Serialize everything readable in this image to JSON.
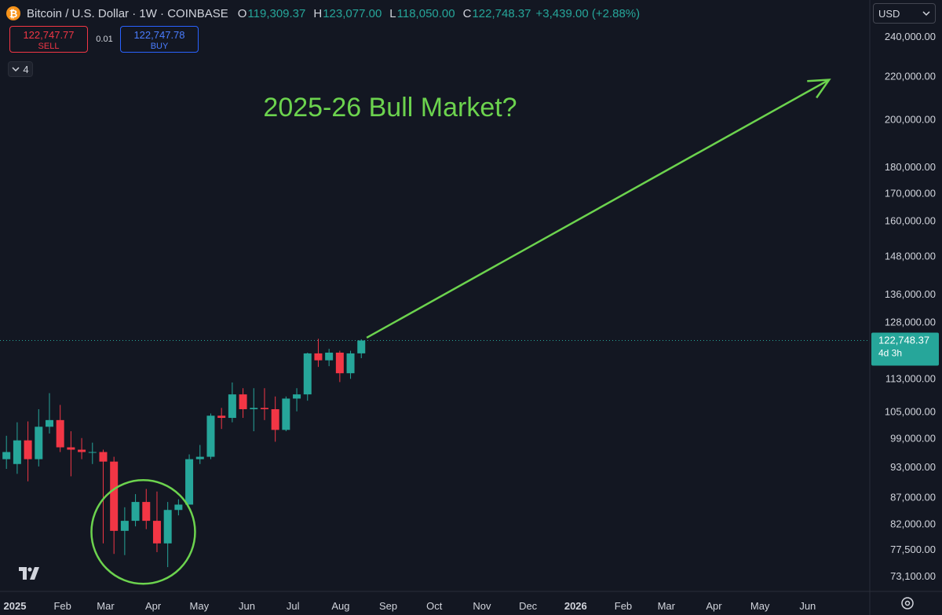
{
  "header": {
    "symbol": "Bitcoin / U.S. Dollar · 1W · COINBASE",
    "open_label": "O",
    "open": "119,309.37",
    "high_label": "H",
    "high": "123,077.00",
    "low_label": "L",
    "low": "118,050.00",
    "close_label": "C",
    "close": "122,748.37",
    "change": "+3,439.00 (+2.88%)"
  },
  "trade": {
    "sell_price": "122,747.77",
    "sell_label": "SELL",
    "spread": "0.01",
    "buy_price": "122,747.78",
    "buy_label": "BUY"
  },
  "indicators_count": "4",
  "currency": "USD",
  "price_tag": {
    "price": "122,748.37",
    "countdown": "4d 3h"
  },
  "colors": {
    "up": "#26a69a",
    "down": "#f23645",
    "annotation": "#6cd34e",
    "background": "#131722"
  },
  "chart_data": {
    "type": "candlestick",
    "title": "2025-26 Bull Market?",
    "scale": "log",
    "y_ticks": [
      73100,
      77500,
      82000,
      87000,
      93000,
      99000,
      105000,
      113000,
      128000,
      136000,
      148000,
      160000,
      170000,
      180000,
      200000,
      220000,
      240000
    ],
    "y_tick_labels": [
      "73,100.00",
      "77,500.00",
      "82,000.00",
      "87,000.00",
      "93,000.00",
      "99,000.00",
      "105,000.00",
      "113,000.00",
      "128,000.00",
      "136,000.00",
      "148,000.00",
      "160,000.00",
      "170,000.00",
      "180,000.00",
      "200,000.00",
      "220,000.00",
      "240,000.00"
    ],
    "x_ticks": [
      {
        "label": "2025",
        "date": "2025-01-01",
        "bold": true
      },
      {
        "label": "Feb",
        "date": "2025-02-01"
      },
      {
        "label": "Mar",
        "date": "2025-03-01"
      },
      {
        "label": "Apr",
        "date": "2025-04-01"
      },
      {
        "label": "May",
        "date": "2025-05-01"
      },
      {
        "label": "Jun",
        "date": "2025-06-01"
      },
      {
        "label": "Jul",
        "date": "2025-07-01"
      },
      {
        "label": "Aug",
        "date": "2025-08-01"
      },
      {
        "label": "Sep",
        "date": "2025-09-01"
      },
      {
        "label": "Oct",
        "date": "2025-10-01"
      },
      {
        "label": "Nov",
        "date": "2025-11-01"
      },
      {
        "label": "Dec",
        "date": "2025-12-01"
      },
      {
        "label": "2026",
        "date": "2026-01-01",
        "bold": true
      },
      {
        "label": "Feb",
        "date": "2026-02-01"
      },
      {
        "label": "Mar",
        "date": "2026-03-01"
      },
      {
        "label": "Apr",
        "date": "2026-04-01"
      },
      {
        "label": "May",
        "date": "2026-05-01"
      },
      {
        "label": "Jun",
        "date": "2026-06-01"
      }
    ],
    "candles": [
      {
        "date": "2024-12-23",
        "o": 94500,
        "h": 99500,
        "l": 92500,
        "c": 96000
      },
      {
        "date": "2024-12-30",
        "o": 93500,
        "h": 102500,
        "l": 91500,
        "c": 98500
      },
      {
        "date": "2025-01-06",
        "o": 98500,
        "h": 102700,
        "l": 90000,
        "c": 94500
      },
      {
        "date": "2025-01-13",
        "o": 94500,
        "h": 105500,
        "l": 93000,
        "c": 101500
      },
      {
        "date": "2025-01-20",
        "o": 101500,
        "h": 109300,
        "l": 100000,
        "c": 103000
      },
      {
        "date": "2025-01-27",
        "o": 103000,
        "h": 106500,
        "l": 96000,
        "c": 97000
      },
      {
        "date": "2025-02-03",
        "o": 97000,
        "h": 100500,
        "l": 91000,
        "c": 96500
      },
      {
        "date": "2025-02-10",
        "o": 96500,
        "h": 99000,
        "l": 94500,
        "c": 96000
      },
      {
        "date": "2025-02-17",
        "o": 96000,
        "h": 98000,
        "l": 93500,
        "c": 96000
      },
      {
        "date": "2025-02-24",
        "o": 96000,
        "h": 96500,
        "l": 78500,
        "c": 94000
      },
      {
        "date": "2025-03-03",
        "o": 94000,
        "h": 95000,
        "l": 76700,
        "c": 80700
      },
      {
        "date": "2025-03-10",
        "o": 80700,
        "h": 85000,
        "l": 76500,
        "c": 82500
      },
      {
        "date": "2025-03-17",
        "o": 82500,
        "h": 87500,
        "l": 81500,
        "c": 86000
      },
      {
        "date": "2025-03-24",
        "o": 86000,
        "h": 88500,
        "l": 81000,
        "c": 82500
      },
      {
        "date": "2025-03-31",
        "o": 82500,
        "h": 88000,
        "l": 77000,
        "c": 78500
      },
      {
        "date": "2025-04-07",
        "o": 78500,
        "h": 86000,
        "l": 74500,
        "c": 84500
      },
      {
        "date": "2025-04-14",
        "o": 84500,
        "h": 86500,
        "l": 83500,
        "c": 85500
      },
      {
        "date": "2025-04-21",
        "o": 85500,
        "h": 95500,
        "l": 85500,
        "c": 94500
      },
      {
        "date": "2025-04-28",
        "o": 94500,
        "h": 97500,
        "l": 93500,
        "c": 95000
      },
      {
        "date": "2025-05-05",
        "o": 95000,
        "h": 104500,
        "l": 94500,
        "c": 104000
      },
      {
        "date": "2025-05-12",
        "o": 104000,
        "h": 105800,
        "l": 101000,
        "c": 103500
      },
      {
        "date": "2025-05-19",
        "o": 103500,
        "h": 111900,
        "l": 102500,
        "c": 109000
      },
      {
        "date": "2025-05-26",
        "o": 109000,
        "h": 110500,
        "l": 103500,
        "c": 105500
      },
      {
        "date": "2025-06-02",
        "o": 105500,
        "h": 110500,
        "l": 100500,
        "c": 105800
      },
      {
        "date": "2025-06-09",
        "o": 105800,
        "h": 110500,
        "l": 103000,
        "c": 105500
      },
      {
        "date": "2025-06-16",
        "o": 105500,
        "h": 108500,
        "l": 98200,
        "c": 100800
      },
      {
        "date": "2025-06-23",
        "o": 100800,
        "h": 108500,
        "l": 100500,
        "c": 108000
      },
      {
        "date": "2025-06-30",
        "o": 108000,
        "h": 110500,
        "l": 105000,
        "c": 109000
      },
      {
        "date": "2025-07-07",
        "o": 109000,
        "h": 119500,
        "l": 107500,
        "c": 119300
      },
      {
        "date": "2025-07-14",
        "o": 119300,
        "h": 123200,
        "l": 115800,
        "c": 117500
      },
      {
        "date": "2025-07-21",
        "o": 117500,
        "h": 120500,
        "l": 116000,
        "c": 119500
      },
      {
        "date": "2025-07-28",
        "o": 119500,
        "h": 120000,
        "l": 112000,
        "c": 114200
      },
      {
        "date": "2025-08-04",
        "o": 114200,
        "h": 120000,
        "l": 112800,
        "c": 119300
      },
      {
        "date": "2025-08-11",
        "o": 119309.37,
        "h": 123077,
        "l": 118050,
        "c": 122748.37
      }
    ],
    "trend_arrow": {
      "from": {
        "date": "2025-08-18",
        "price": 123500
      },
      "to": {
        "date": "2026-06-15",
        "price": 218000
      }
    },
    "circle_annotation": {
      "center_date": "2025-03-24",
      "center_price": 80500
    },
    "last_price": 122748.37
  }
}
